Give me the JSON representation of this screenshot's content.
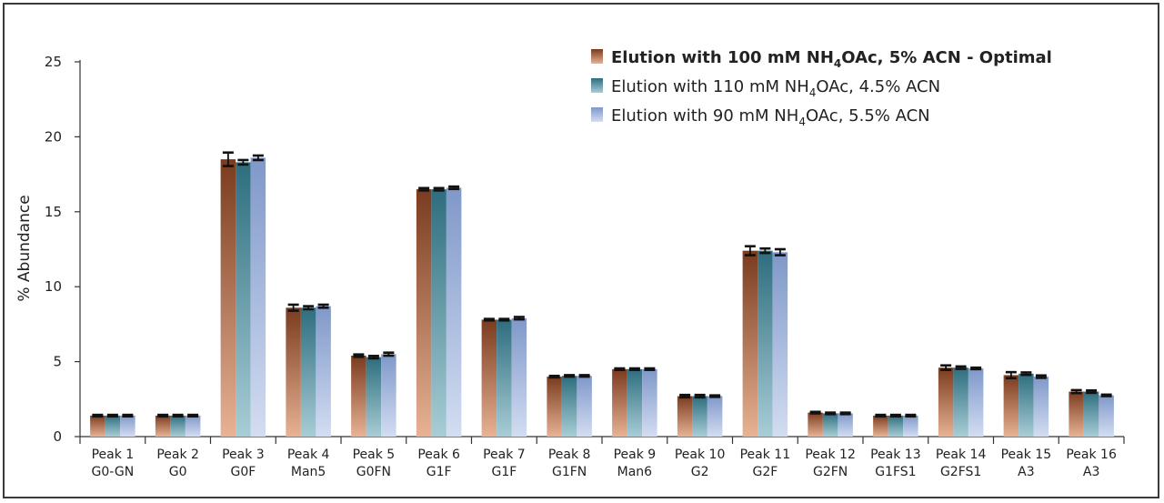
{
  "chart_data": {
    "type": "bar",
    "title": "",
    "xlabel": "",
    "ylabel": "% Abundance",
    "ylim": [
      0,
      25
    ],
    "yticks": [
      0,
      5,
      10,
      15,
      20,
      25
    ],
    "grid": false,
    "legend_position": "top-right",
    "categories": [
      [
        "Peak 1",
        "G0-GN"
      ],
      [
        "Peak 2",
        "G0"
      ],
      [
        "Peak 3",
        "G0F"
      ],
      [
        "Peak 4",
        "Man5"
      ],
      [
        "Peak 5",
        "G0FN"
      ],
      [
        "Peak 6",
        "G1F"
      ],
      [
        "Peak 7",
        "G1F"
      ],
      [
        "Peak 8",
        "G1FN"
      ],
      [
        "Peak 9",
        "Man6"
      ],
      [
        "Peak 10",
        "G2"
      ],
      [
        "Peak 11",
        "G2F"
      ],
      [
        "Peak 12",
        "G2FN"
      ],
      [
        "Peak 13",
        "G1FS1"
      ],
      [
        "Peak 14",
        "G2FS1"
      ],
      [
        "Peak 15",
        "A3"
      ],
      [
        "Peak 16",
        "A3"
      ]
    ],
    "series": [
      {
        "legend": {
          "prefix": "Elution with 100 mM NH",
          "sub": "4",
          "suffix": "OAc, 5% ACN - Optimal",
          "bold": true
        },
        "color_top": "#7a3b1e",
        "color_bottom": "#e8b294",
        "values": [
          1.4,
          1.4,
          18.5,
          8.6,
          5.4,
          16.5,
          7.8,
          4.0,
          4.5,
          2.7,
          12.4,
          1.6,
          1.4,
          4.6,
          4.1,
          3.0
        ],
        "errors": [
          0.05,
          0.05,
          0.45,
          0.2,
          0.08,
          0.08,
          0.05,
          0.05,
          0.05,
          0.08,
          0.3,
          0.05,
          0.05,
          0.15,
          0.2,
          0.1
        ]
      },
      {
        "legend": {
          "prefix": "Elution with 110 mM NH",
          "sub": "4",
          "suffix": "OAc, 4.5% ACN",
          "bold": false
        },
        "color_top": "#2d6d7e",
        "color_bottom": "#a8cdd6",
        "values": [
          1.4,
          1.4,
          18.3,
          8.6,
          5.3,
          16.5,
          7.8,
          4.05,
          4.5,
          2.7,
          12.4,
          1.55,
          1.4,
          4.6,
          4.2,
          3.0
        ],
        "errors": [
          0.05,
          0.05,
          0.15,
          0.1,
          0.08,
          0.08,
          0.05,
          0.05,
          0.05,
          0.08,
          0.15,
          0.05,
          0.05,
          0.08,
          0.08,
          0.08
        ]
      },
      {
        "legend": {
          "prefix": "Elution with 90 mM NH",
          "sub": "4",
          "suffix": "OAc, 5.5% ACN",
          "bold": false
        },
        "color_top": "#7f98c9",
        "color_bottom": "#d3ddf2",
        "values": [
          1.4,
          1.4,
          18.6,
          8.7,
          5.5,
          16.6,
          7.9,
          4.05,
          4.5,
          2.7,
          12.3,
          1.55,
          1.4,
          4.55,
          4.0,
          2.75
        ],
        "errors": [
          0.05,
          0.05,
          0.15,
          0.1,
          0.1,
          0.08,
          0.08,
          0.05,
          0.05,
          0.05,
          0.2,
          0.05,
          0.05,
          0.05,
          0.08,
          0.05
        ]
      }
    ]
  }
}
